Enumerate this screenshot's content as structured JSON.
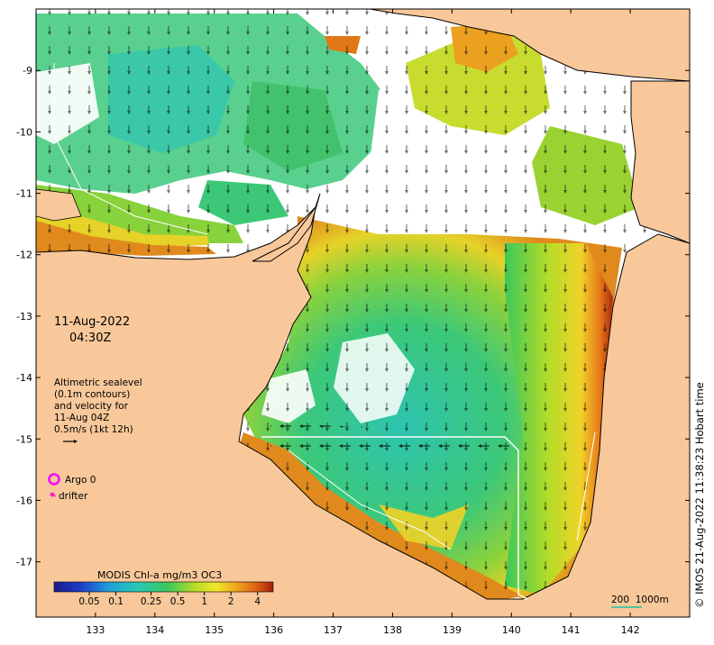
{
  "map": {
    "date": "11-Aug-2022",
    "time": "04:30Z",
    "alti_lines": [
      "Altimetric sealevel",
      "(0.1m contours)",
      "and velocity for",
      "11-Aug 04Z",
      "0.5m/s (1kt 12h)"
    ],
    "argo_label": "Argo 0",
    "drifter_label": "drifter",
    "colorbar_title": "MODIS Chl-a mg/m3 OC3",
    "colorbar_ticks": [
      "0.05",
      "0.1",
      "0.25",
      "0.5",
      "1",
      "2",
      "4"
    ],
    "colorbar_tick_values": [
      0.05,
      0.1,
      0.25,
      0.5,
      1,
      2,
      4
    ],
    "colorbar_range": [
      0.02,
      6
    ],
    "scale_label": "200  1000m",
    "copyright": "© IMOS 21-Aug-2022 11:38:23 Hobart time",
    "lon_ticks": [
      "133",
      "134",
      "135",
      "136",
      "137",
      "138",
      "139",
      "140",
      "141",
      "142"
    ],
    "lon_values": [
      133,
      134,
      135,
      136,
      137,
      138,
      139,
      140,
      141,
      142
    ],
    "lon_range": [
      132.0,
      143.0
    ],
    "lat_ticks": [
      "-9",
      "-10",
      "-11",
      "-12",
      "-13",
      "-14",
      "-15",
      "-16",
      "-17"
    ],
    "lat_values": [
      -9,
      -10,
      -11,
      -12,
      -13,
      -14,
      -15,
      -16,
      -17
    ],
    "lat_range": [
      -8.0,
      -17.9
    ],
    "colors": {
      "land": "#f8c89a",
      "ocean_mid": "#2fc8a8",
      "coastal_high": "#e07818",
      "peak": "#b02810",
      "argo": "#ff00ff",
      "drifter": "#ff22cc",
      "scale_bar": "#20c0a0"
    }
  }
}
